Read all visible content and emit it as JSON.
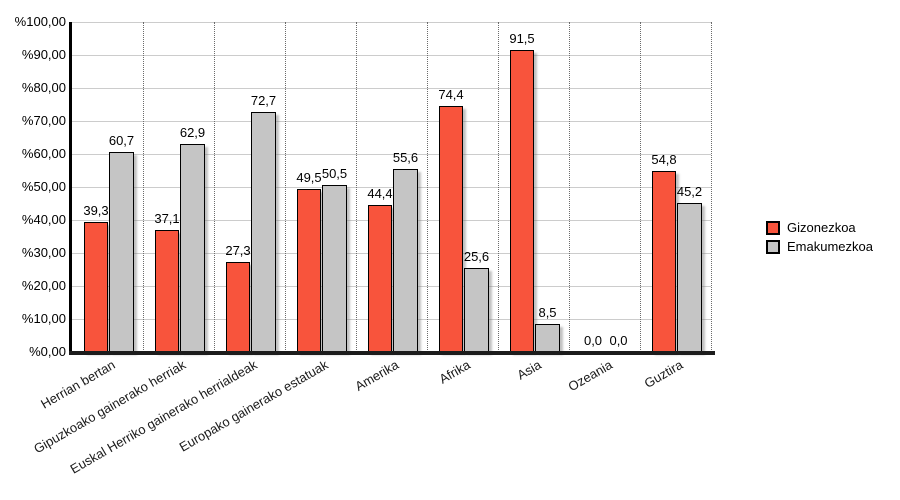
{
  "chart_data": {
    "type": "bar",
    "title": "",
    "xlabel": "",
    "ylabel": "",
    "categories": [
      "Herrian bertan",
      "Gipuzkoako gainerako herriak",
      "Euskal Herriko gainerako herrialdeak",
      "Europako gainerako estatuak",
      "Amerika",
      "Afrika",
      "Asia",
      "Ozeania",
      "Guztira"
    ],
    "series": [
      {
        "name": "Gizonezkoa",
        "color": "#f8543c",
        "values": [
          39.3,
          37.1,
          27.3,
          49.5,
          44.4,
          74.4,
          91.5,
          0.0,
          54.8
        ]
      },
      {
        "name": "Emakumezkoa",
        "color": "#c5c5c5",
        "values": [
          60.7,
          62.9,
          72.7,
          50.5,
          55.6,
          25.6,
          8.5,
          0.0,
          45.2
        ]
      }
    ],
    "y_axis": {
      "min": 0,
      "max": 100,
      "step": 10,
      "tick_labels": [
        "%0,00",
        "%10,00",
        "%20,00",
        "%30,00",
        "%40,00",
        "%50,00",
        "%60,00",
        "%70,00",
        "%80,00",
        "%90,00",
        "%100,00"
      ]
    },
    "value_label_decimal_separator": ",",
    "grid": true,
    "legend_position": "right",
    "colors": {
      "gridline": "#cccccc",
      "separator": "#6b6b6b",
      "axis": "#000000",
      "baseline": "#1c1c1c",
      "background": "#ffffff"
    }
  }
}
